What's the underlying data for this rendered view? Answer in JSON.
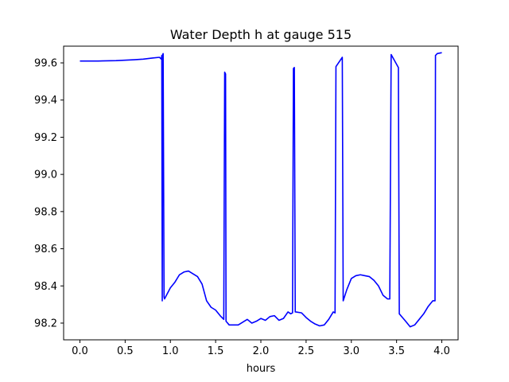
{
  "chart_data": {
    "type": "line",
    "title": "Water Depth h at gauge 515",
    "xlabel": "hours",
    "ylabel": "",
    "xlim": [
      -0.18,
      4.18
    ],
    "ylim": [
      98.11,
      99.69
    ],
    "xticks": [
      0.0,
      0.5,
      1.0,
      1.5,
      2.0,
      2.5,
      3.0,
      3.5,
      4.0
    ],
    "xtick_labels": [
      "0.0",
      "0.5",
      "1.0",
      "1.5",
      "2.0",
      "2.5",
      "3.0",
      "3.5",
      "4.0"
    ],
    "yticks": [
      98.2,
      98.4,
      98.6,
      98.8,
      99.0,
      99.2,
      99.4,
      99.6
    ],
    "ytick_labels": [
      "98.2",
      "98.4",
      "98.6",
      "98.8",
      "99.0",
      "99.2",
      "99.4",
      "99.6"
    ],
    "grid": false,
    "color": "#0000ff",
    "series": [
      {
        "name": "",
        "x": [
          0.0,
          0.2,
          0.4,
          0.6,
          0.7,
          0.8,
          0.88,
          0.9,
          0.905,
          0.91,
          0.915,
          0.92,
          0.93,
          0.935,
          1.0,
          1.05,
          1.1,
          1.15,
          1.2,
          1.25,
          1.3,
          1.35,
          1.4,
          1.45,
          1.5,
          1.55,
          1.59,
          1.6,
          1.61,
          1.615,
          1.65,
          1.7,
          1.75,
          1.8,
          1.85,
          1.9,
          1.95,
          2.0,
          2.05,
          2.1,
          2.15,
          2.2,
          2.25,
          2.3,
          2.33,
          2.35,
          2.36,
          2.37,
          2.38,
          2.385,
          2.45,
          2.5,
          2.55,
          2.6,
          2.65,
          2.7,
          2.75,
          2.8,
          2.82,
          2.83,
          2.9,
          2.91,
          2.95,
          3.0,
          3.05,
          3.1,
          3.15,
          3.2,
          3.25,
          3.3,
          3.35,
          3.4,
          3.425,
          3.44,
          3.52,
          3.53,
          3.6,
          3.65,
          3.7,
          3.75,
          3.8,
          3.85,
          3.9,
          3.925,
          3.93,
          3.95,
          4.0
        ],
        "y": [
          99.61,
          99.61,
          99.612,
          99.617,
          99.62,
          99.626,
          99.63,
          99.62,
          99.64,
          98.32,
          99.645,
          99.65,
          98.34,
          98.33,
          98.39,
          98.42,
          98.46,
          98.475,
          98.48,
          98.465,
          98.45,
          98.41,
          98.32,
          98.285,
          98.27,
          98.24,
          98.22,
          99.55,
          99.54,
          98.21,
          98.19,
          98.19,
          98.19,
          98.205,
          98.22,
          98.2,
          98.21,
          98.225,
          98.215,
          98.235,
          98.24,
          98.215,
          98.225,
          98.26,
          98.25,
          98.255,
          99.57,
          99.575,
          98.26,
          98.26,
          98.255,
          98.23,
          98.21,
          98.195,
          98.185,
          98.19,
          98.22,
          98.26,
          98.255,
          99.58,
          99.63,
          98.32,
          98.38,
          98.44,
          98.455,
          98.46,
          98.455,
          98.45,
          98.43,
          98.4,
          98.35,
          98.33,
          98.33,
          99.645,
          99.575,
          98.25,
          98.21,
          98.18,
          98.19,
          98.22,
          98.25,
          98.29,
          98.32,
          98.32,
          99.64,
          99.65,
          99.655
        ]
      }
    ]
  }
}
